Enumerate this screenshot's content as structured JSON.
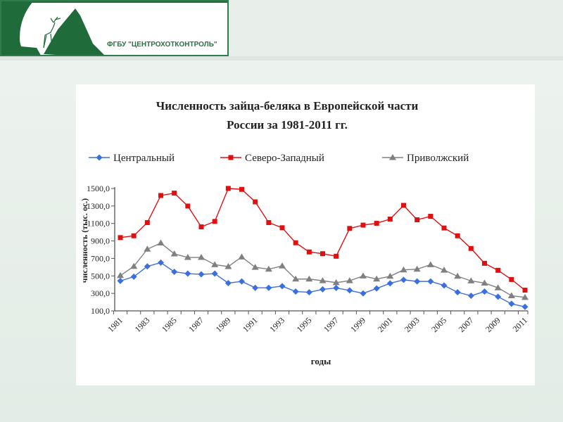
{
  "header": {
    "org_name": "ФГБУ \"ЦЕНТРОХОТКОНТРОЛЬ\"",
    "brand_color": "#1f6b3a"
  },
  "chart_data": {
    "type": "line",
    "title_line1": "Численность зайца-беляка в Европейской части",
    "title_line2": "России за 1981-2011 гг.",
    "xlabel": "годы",
    "ylabel": "численность (тыс. ос.)",
    "ylim": [
      100,
      1500
    ],
    "yticks": [
      "100,0",
      "300,0",
      "500,0",
      "700,0",
      "900,0",
      "1100,0",
      "1300,0",
      "1500,0"
    ],
    "xtick_labels": [
      "1981",
      "1983",
      "1985",
      "1987",
      "1989",
      "1991",
      "1993",
      "1995",
      "1997",
      "1999",
      "2001",
      "2003",
      "2005",
      "2007",
      "2009",
      "2011"
    ],
    "x": [
      1981,
      1982,
      1983,
      1984,
      1985,
      1986,
      1987,
      1988,
      1989,
      1990,
      1991,
      1992,
      1993,
      1994,
      1995,
      1996,
      1997,
      1998,
      1999,
      2000,
      2001,
      2002,
      2003,
      2004,
      2005,
      2006,
      2007,
      2008,
      2009,
      2010,
      2011
    ],
    "grid": false,
    "legend_position": "top",
    "series": [
      {
        "name": "Центральный",
        "color": "#3b6fe0",
        "marker": "diamond",
        "values": [
          443,
          491,
          609,
          652,
          547,
          526,
          518,
          526,
          418,
          437,
          364,
          364,
          383,
          321,
          313,
          346,
          362,
          334,
          300,
          356,
          415,
          455,
          437,
          437,
          391,
          313,
          273,
          321,
          262,
          181,
          146
        ]
      },
      {
        "name": "Северо-Западный",
        "color": "#e01010",
        "marker": "square",
        "values": [
          938,
          959,
          1110,
          1420,
          1447,
          1299,
          1061,
          1123,
          1501,
          1490,
          1347,
          1110,
          1051,
          879,
          774,
          754,
          725,
          1043,
          1081,
          1102,
          1150,
          1307,
          1142,
          1182,
          1048,
          959,
          814,
          644,
          564,
          459,
          337
        ]
      },
      {
        "name": "Приволжский",
        "color": "#808080",
        "marker": "triangle",
        "values": [
          504,
          609,
          806,
          876,
          752,
          711,
          711,
          628,
          607,
          717,
          598,
          577,
          614,
          464,
          464,
          445,
          423,
          445,
          499,
          464,
          496,
          569,
          577,
          628,
          566,
          496,
          443,
          418,
          364,
          273,
          254
        ]
      }
    ]
  }
}
